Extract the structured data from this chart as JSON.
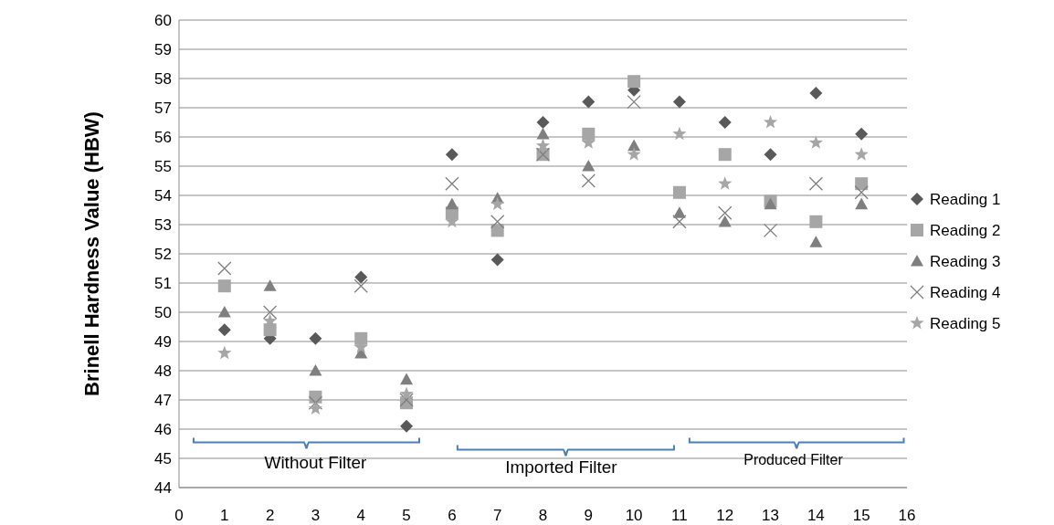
{
  "chart_data": {
    "type": "scatter",
    "ylabel": "Brinell Hardness Value (HBW)",
    "x": [
      1,
      2,
      3,
      4,
      5,
      6,
      7,
      8,
      9,
      10,
      11,
      12,
      13,
      14,
      15
    ],
    "xlim": [
      0,
      16
    ],
    "xticks": [
      0,
      1,
      2,
      3,
      4,
      5,
      6,
      7,
      8,
      9,
      10,
      11,
      12,
      13,
      14,
      15,
      16
    ],
    "ylim": [
      44,
      60
    ],
    "yticks": [
      44,
      45,
      46,
      47,
      48,
      49,
      50,
      51,
      52,
      53,
      54,
      55,
      56,
      57,
      58,
      59,
      60
    ],
    "grid": "y",
    "legend": "right",
    "series": [
      {
        "name": "Reading 1",
        "color": "#595959",
        "marker": "diamond",
        "values": [
          49.4,
          49.1,
          49.1,
          51.2,
          46.1,
          55.4,
          51.8,
          56.5,
          57.2,
          57.6,
          57.2,
          56.5,
          55.4,
          57.5,
          56.1
        ]
      },
      {
        "name": "Reading 2",
        "color": "#a6a6a6",
        "marker": "square",
        "values": [
          50.9,
          49.4,
          47.1,
          49.1,
          46.9,
          53.4,
          52.8,
          55.4,
          56.1,
          57.9,
          54.1,
          55.4,
          53.8,
          53.1,
          54.4
        ]
      },
      {
        "name": "Reading 3",
        "color": "#7f7f7f",
        "marker": "triangle",
        "values": [
          50.0,
          50.9,
          48.0,
          48.6,
          47.7,
          53.7,
          53.9,
          56.1,
          55.0,
          55.7,
          53.4,
          53.1,
          53.7,
          52.4,
          53.7
        ]
      },
      {
        "name": "Reading 4",
        "color": "#7f7f7f",
        "marker": "cross",
        "values": [
          51.5,
          50.0,
          46.9,
          50.9,
          47.0,
          54.4,
          53.1,
          55.4,
          54.5,
          57.2,
          53.1,
          53.4,
          52.8,
          54.4,
          54.1
        ]
      },
      {
        "name": "Reading 5",
        "color": "#a6a6a6",
        "marker": "star",
        "values": [
          48.6,
          49.7,
          46.7,
          48.8,
          47.2,
          53.1,
          53.7,
          55.7,
          55.8,
          55.4,
          56.1,
          54.4,
          56.5,
          55.8,
          55.4
        ]
      }
    ],
    "annotations": [
      "Without Filter",
      "Imported Filter",
      "Produced Filter"
    ]
  }
}
